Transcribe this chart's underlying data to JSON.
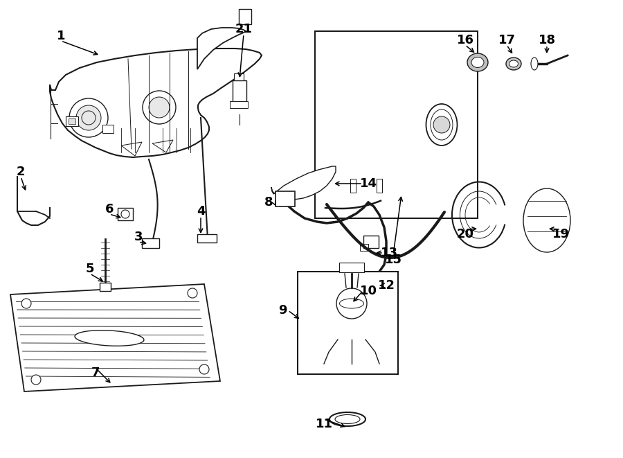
{
  "background": "#ffffff",
  "line_color": "#1a1a1a",
  "figsize": [
    9.0,
    6.61
  ],
  "dpi": 100,
  "lw": 1.0
}
